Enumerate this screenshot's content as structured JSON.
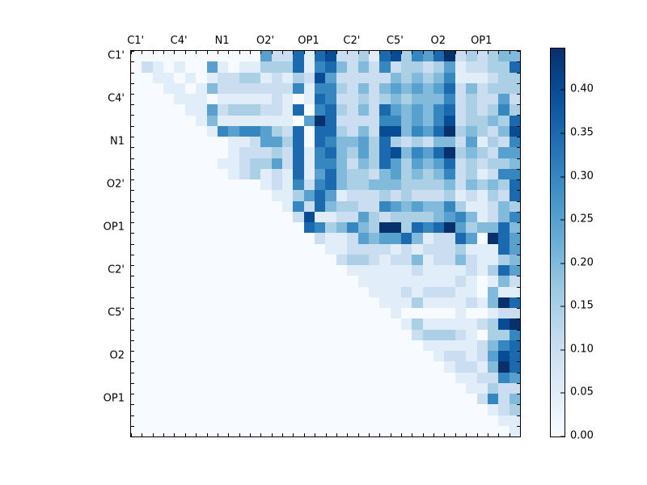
{
  "chart_data": {
    "type": "heatmap",
    "title": "",
    "xlabel": "",
    "ylabel": "",
    "n": 36,
    "group_size": 4,
    "x_tick_labels": [
      "C1'",
      "C4'",
      "N1",
      "O2'",
      "OP1",
      "C2'",
      "C5'",
      "O2",
      "OP1"
    ],
    "y_tick_labels": [
      "C1'",
      "C4'",
      "N1",
      "O2'",
      "OP1",
      "C2'",
      "C5'",
      "O2",
      "OP1"
    ],
    "triangular": "upper",
    "grid": false,
    "value_encoding": {
      "note": "matrix_levels digits 0-9 encode cell values; value = level * 0.05",
      "level_step": 0.05,
      "vmin": 0.0,
      "vmax": 0.448
    },
    "matrix_levels": [
      "000000000000522717822317836579232344",
      "021010051011333716742426233235122337",
      "001101012233121328522222434346111233",
      "000110142222222616632424545457242333",
      "000011101111121017622323434446232252",
      "000001152333221706732427545467232363",
      "000000141111111059722226645468233437",
      "000000016566532707732428846579343248",
      "000000000112553707644537323244251326",
      "000000000122232716743537846579343255",
      "000000001123352716642437535457232334",
      "000000000123121715743324534346231266",
      "000000000000121626743344433334243437",
      "000000000000011357512223232223121327",
      "000000000000001627433226545446311243",
      "000000000000000281122532333345641246",
      "000000000000000076346439937679534474",
      "000000000000000002112545574122750975",
      "000000000000000000112222121222311175",
      "000000000000000000023321224122421134",
      "000000000000000000001111112111121375",
      "000000000000000000000111111111210142",
      "000000000000000000000011121222110411",
      "000000000000000000000001113111121497",
      "000000000000000000000000100000100122",
      "000000000000000000000000013111112389",
      "000000000000000000000000002333210336",
      "000000000000000000000000000111112467",
      "000000000000000000000000000012212587",
      "000000000000000000000000000001221497",
      "000000000000000000000000000000112265",
      "000000000000000000000000000000011322",
      "000000000000000000000000000000002624",
      "000000000000000000000000000000000123",
      "000000000000000000000000000000000011",
      "000000000000000000000000000000000001"
    ],
    "palette": {
      "name": "Blues",
      "level_colors": [
        "#f7fbff",
        "#e1edf8",
        "#cbdef1",
        "#abd0e6",
        "#81badb",
        "#58a1cf",
        "#3686c0",
        "#1b69af",
        "#084c95",
        "#08306b"
      ],
      "gradient_stops": [
        "#f7fbff",
        "#deebf7",
        "#c6dbef",
        "#9ecae1",
        "#6baed6",
        "#4292c6",
        "#2171b5",
        "#08519c",
        "#08306b"
      ]
    },
    "colorbar": {
      "min": 0.0,
      "max": 0.448,
      "tick_values": [
        0.0,
        0.05,
        0.1,
        0.15,
        0.2,
        0.25,
        0.3,
        0.35,
        0.4
      ],
      "tick_labels": [
        "0.00",
        "0.05",
        "0.10",
        "0.15",
        "0.20",
        "0.25",
        "0.30",
        "0.35",
        "0.40"
      ],
      "position": "right"
    }
  }
}
